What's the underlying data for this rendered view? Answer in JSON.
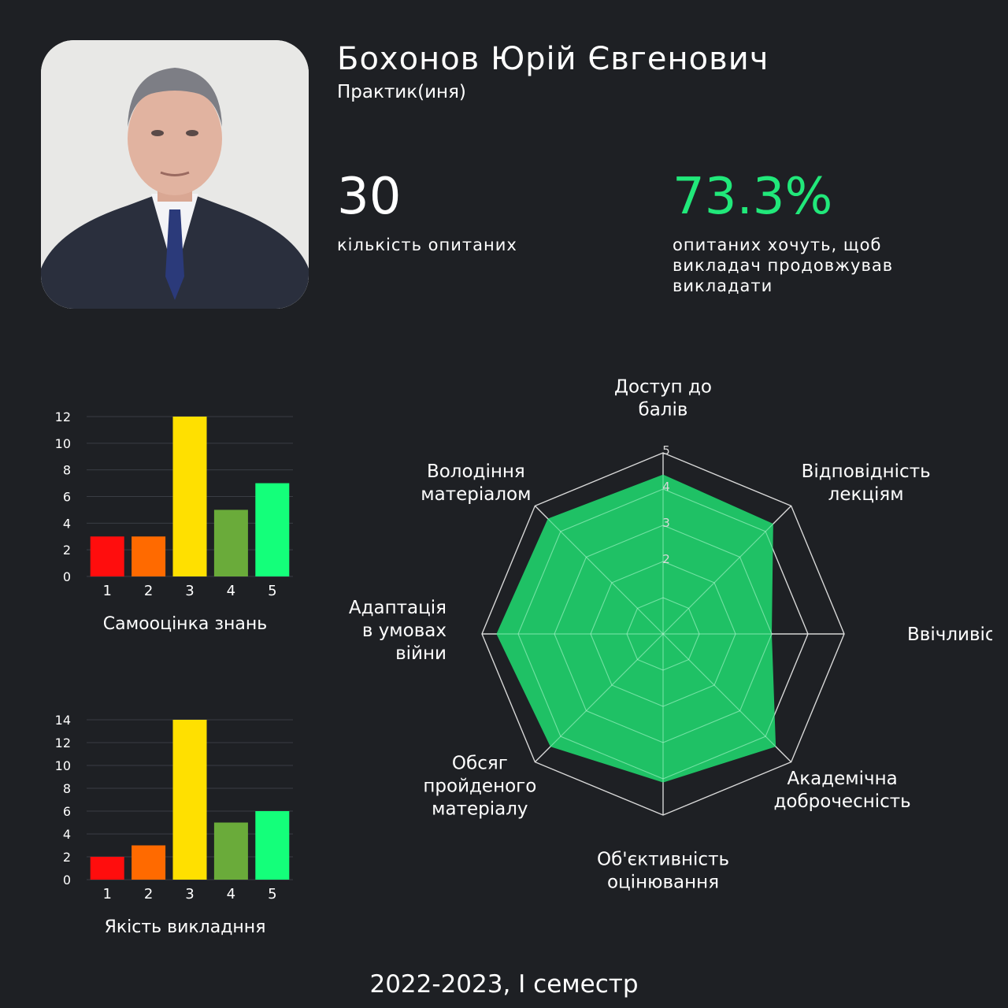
{
  "profile": {
    "name": "Бохонов Юрій Євгенович",
    "role": "Практик(иня)"
  },
  "stats": {
    "respondents_value": "30",
    "respondents_label": "кількість опитаних",
    "continue_value": "73.3%",
    "continue_label": "опитаних хочуть, щоб викладач продовжував викладати"
  },
  "footer": {
    "period": "2022-2023, I семестр"
  },
  "colors": {
    "background": "#1e2024",
    "accent_green": "#21e87a",
    "bar_1": "#ff0d0d",
    "bar_2": "#ff6a00",
    "bar_3": "#ffe000",
    "bar_4": "#6aab3a",
    "bar_5": "#14ff7a",
    "radar_fill": "#1fcf6b"
  },
  "chart_data": [
    {
      "type": "bar",
      "title": "Самооцінка знань",
      "categories": [
        "1",
        "2",
        "3",
        "4",
        "5"
      ],
      "values": [
        3,
        3,
        12,
        5,
        7
      ],
      "ylim": [
        0,
        12
      ],
      "yticks": [
        0,
        2,
        4,
        6,
        8,
        10,
        12
      ],
      "grid": true
    },
    {
      "type": "bar",
      "title": "Якість викладння",
      "categories": [
        "1",
        "2",
        "3",
        "4",
        "5"
      ],
      "values": [
        2,
        3,
        14,
        5,
        6
      ],
      "ylim": [
        0,
        14
      ],
      "yticks": [
        0,
        2,
        4,
        6,
        8,
        10,
        12,
        14
      ],
      "grid": true
    },
    {
      "type": "radar",
      "axes": [
        "Доступ до балів",
        "Відповідність лекціям",
        "Ввічливість",
        "Академічна доброчесність",
        "Об'єктивність оцінювання",
        "Обсяг пройденого матеріалу",
        "Адаптація в умовах війни",
        "Володіння матеріалом"
      ],
      "axis_label_lines": [
        [
          "Доступ до",
          "балів"
        ],
        [
          "Відповідність",
          "лекціям"
        ],
        [
          "Ввічливість"
        ],
        [
          "Академічна",
          "доброчесність"
        ],
        [
          "Об'єктивність",
          "оцінювання"
        ],
        [
          "Обсяг",
          "пройденого",
          "матеріалу"
        ],
        [
          "Адаптація",
          "в умовах",
          "війни"
        ],
        [
          "Володіння",
          "матеріалом"
        ]
      ],
      "values": [
        4.4,
        4.3,
        3.0,
        4.4,
        4.1,
        4.4,
        4.6,
        4.5
      ],
      "rlim": [
        0,
        5
      ],
      "rticks": [
        2,
        3,
        4,
        5
      ]
    }
  ]
}
